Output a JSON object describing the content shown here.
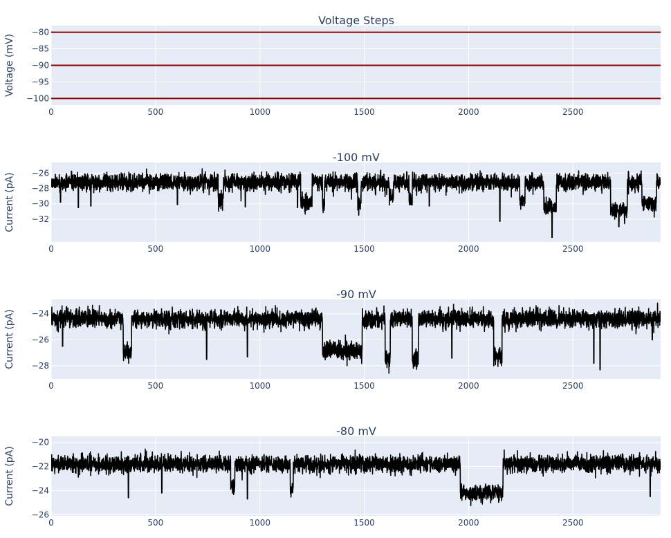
{
  "chart_data": [
    {
      "type": "line",
      "title": "Voltage Steps",
      "xlabel": "",
      "ylabel": "Voltage (mV)",
      "xlim": [
        0,
        2920
      ],
      "ylim": [
        -102,
        -78
      ],
      "xticks": [
        0,
        500,
        1000,
        1500,
        2000,
        2500
      ],
      "yticks": [
        -80,
        -85,
        -90,
        -95,
        -100
      ],
      "line_color": "#8b0000",
      "series": [
        {
          "x": [
            0,
            2920
          ],
          "y": [
            -80,
            -80
          ]
        },
        {
          "x": [
            0,
            2920
          ],
          "y": [
            -90,
            -90
          ]
        },
        {
          "x": [
            0,
            2920
          ],
          "y": [
            -100,
            -100
          ]
        }
      ]
    },
    {
      "type": "line",
      "title": "-100 mV",
      "xlabel": "",
      "ylabel": "Current (pA)",
      "xlim": [
        0,
        2920
      ],
      "ylim": [
        -35.0,
        -24.6
      ],
      "xticks": [
        0,
        500,
        1000,
        1500,
        2000,
        2500
      ],
      "yticks": [
        -26,
        -28,
        -30,
        -32
      ],
      "line_color": "#000000",
      "baseline": -27.2,
      "noise_sd": 0.55,
      "events": [
        {
          "x0": 800,
          "x1": 825,
          "level": -29.5
        },
        {
          "x0": 1195,
          "x1": 1250,
          "level": -29.8
        },
        {
          "x0": 1300,
          "x1": 1310,
          "level": -30.5
        },
        {
          "x0": 1470,
          "x1": 1485,
          "level": -30.0
        },
        {
          "x0": 1620,
          "x1": 1640,
          "level": -29.0
        },
        {
          "x0": 1715,
          "x1": 1730,
          "level": -29.5
        },
        {
          "x0": 2245,
          "x1": 2270,
          "level": -29.5
        },
        {
          "x0": 2360,
          "x1": 2420,
          "level": -30.5
        },
        {
          "x0": 2680,
          "x1": 2760,
          "level": -31.0
        },
        {
          "x0": 2830,
          "x1": 2900,
          "level": -30.0
        }
      ],
      "spikes": [
        {
          "x": 45,
          "y": -29.8
        },
        {
          "x": 130,
          "y": -30.5
        },
        {
          "x": 190,
          "y": -30.3
        },
        {
          "x": 605,
          "y": -30.1
        },
        {
          "x": 930,
          "y": -30.4
        },
        {
          "x": 1180,
          "y": -30.5
        },
        {
          "x": 1470,
          "y": -30.8
        },
        {
          "x": 1812,
          "y": -30.3
        },
        {
          "x": 2150,
          "y": -32.3
        },
        {
          "x": 2400,
          "y": -34.4
        },
        {
          "x": 2720,
          "y": -33.0
        }
      ]
    },
    {
      "type": "line",
      "title": "-90 mV",
      "xlabel": "",
      "ylabel": "Current (pA)",
      "xlim": [
        0,
        2920
      ],
      "ylim": [
        -29.0,
        -22.9
      ],
      "xticks": [
        0,
        500,
        1000,
        1500,
        2000,
        2500
      ],
      "yticks": [
        -24,
        -26,
        -28
      ],
      "line_color": "#000000",
      "baseline": -24.4,
      "noise_sd": 0.35,
      "events": [
        {
          "x0": 345,
          "x1": 385,
          "level": -27.0
        },
        {
          "x0": 1300,
          "x1": 1490,
          "level": -26.8
        },
        {
          "x0": 1600,
          "x1": 1625,
          "level": -27.4
        },
        {
          "x0": 1730,
          "x1": 1760,
          "level": -27.5
        },
        {
          "x0": 2120,
          "x1": 2160,
          "level": -27.2
        }
      ],
      "spikes": [
        {
          "x": 55,
          "y": -26.5
        },
        {
          "x": 745,
          "y": -27.5
        },
        {
          "x": 940,
          "y": -27.3
        },
        {
          "x": 1920,
          "y": -27.4
        },
        {
          "x": 2600,
          "y": -27.8
        },
        {
          "x": 2630,
          "y": -28.3
        },
        {
          "x": 2880,
          "y": -26.0
        }
      ]
    },
    {
      "type": "line",
      "title": "-80 mV",
      "xlabel": "",
      "ylabel": "Current (pA)",
      "xlim": [
        0,
        2920
      ],
      "ylim": [
        -26.1,
        -19.5
      ],
      "xticks": [
        0,
        500,
        1000,
        1500,
        2000,
        2500
      ],
      "yticks": [
        -20,
        -22,
        -24,
        -26
      ],
      "line_color": "#000000",
      "baseline": -21.8,
      "noise_sd": 0.35,
      "events": [
        {
          "x0": 860,
          "x1": 880,
          "level": -23.6
        },
        {
          "x0": 1145,
          "x1": 1160,
          "level": -24.0
        },
        {
          "x0": 1960,
          "x1": 2165,
          "level": -24.2
        }
      ],
      "spikes": [
        {
          "x": 370,
          "y": -24.6
        },
        {
          "x": 530,
          "y": -24.2
        },
        {
          "x": 940,
          "y": -24.7
        },
        {
          "x": 2870,
          "y": -24.5
        }
      ]
    }
  ]
}
